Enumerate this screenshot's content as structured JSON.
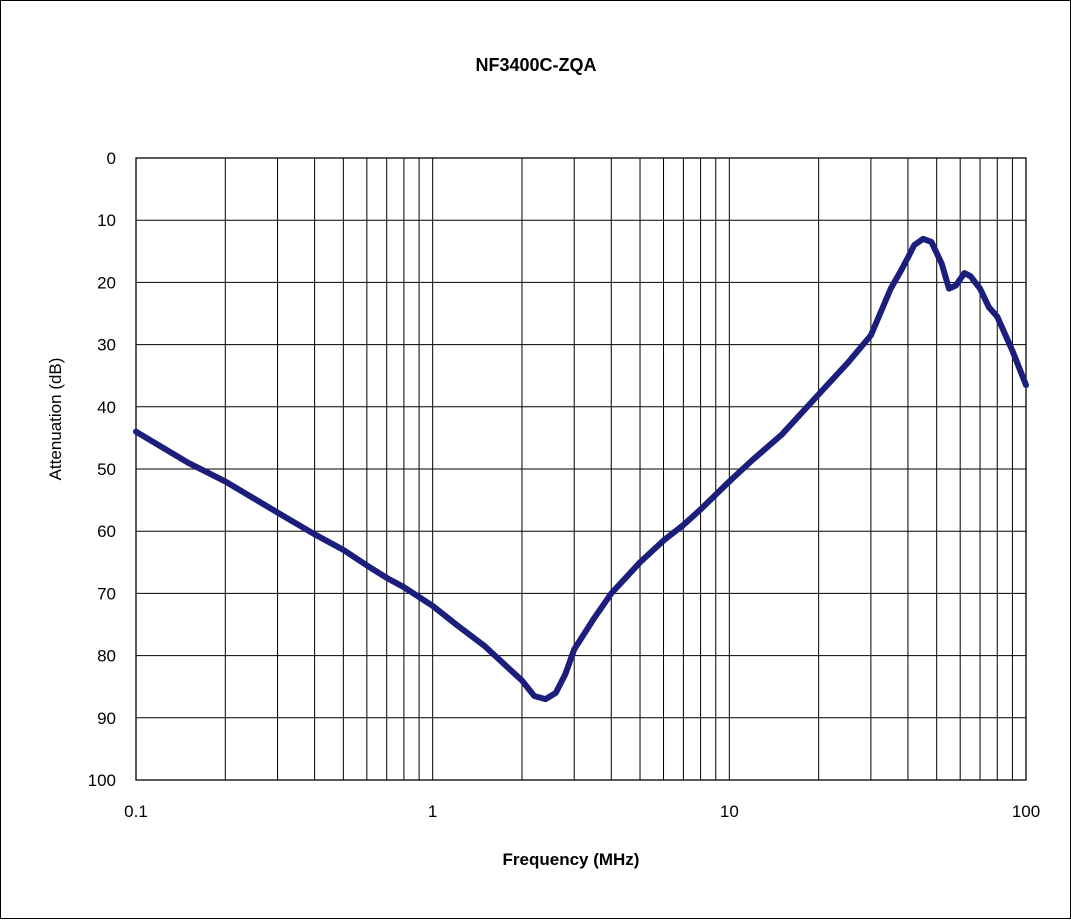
{
  "chart_data": {
    "type": "line",
    "title": "NF3400C-ZQA",
    "xlabel": "Frequency (MHz)",
    "ylabel": "Attenuation (dB)",
    "x_scale": "log",
    "xlim": [
      0.1,
      100
    ],
    "ylim": [
      0,
      100
    ],
    "y_inverted": true,
    "grid": true,
    "x_tick_labels": [
      "0.1",
      "1",
      "10",
      "100"
    ],
    "y_tick_labels": [
      "0",
      "10",
      "20",
      "30",
      "40",
      "50",
      "60",
      "70",
      "80",
      "90",
      "100"
    ],
    "colors": {
      "series": "#1b1e7a",
      "grid": "#000000",
      "frame": "#000000"
    },
    "series": [
      {
        "x": [
          0.1,
          0.15,
          0.2,
          0.3,
          0.4,
          0.5,
          0.6,
          0.7,
          0.8,
          1.0,
          1.2,
          1.5,
          1.8,
          2.0,
          2.2,
          2.4,
          2.6,
          2.8,
          3.0,
          3.5,
          4,
          5,
          6,
          7,
          8,
          10,
          12,
          15,
          20,
          25,
          30,
          35,
          38,
          40,
          42,
          45,
          48,
          52,
          55,
          58,
          62,
          65,
          70,
          75,
          80,
          90,
          100
        ],
        "y": [
          44,
          49,
          52,
          57,
          60.5,
          63,
          65.5,
          67.5,
          69,
          72,
          75,
          78.5,
          82,
          84,
          86.5,
          87,
          86,
          83,
          79,
          74,
          70,
          65,
          61.5,
          59,
          56.5,
          52,
          48.5,
          44.5,
          38,
          33,
          28.5,
          21,
          18,
          16,
          14,
          13,
          13.5,
          17,
          21,
          20.5,
          18.5,
          19,
          21,
          24,
          25.5,
          31,
          36.5
        ]
      }
    ]
  }
}
